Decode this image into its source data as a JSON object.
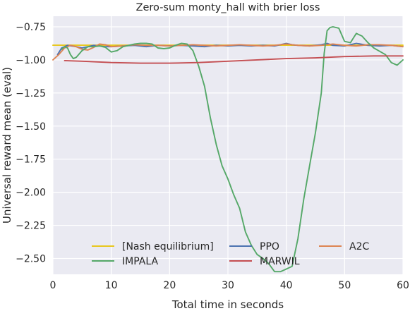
{
  "chart_data": {
    "type": "line",
    "title": "Zero-sum monty_hall with brier loss",
    "xlabel": "Total time in seconds",
    "ylabel": "Universal reward mean (eval)",
    "xlim": [
      0,
      60
    ],
    "ylim": [
      -2.62,
      -0.67
    ],
    "xticks": [
      0,
      10,
      20,
      30,
      40,
      50,
      60
    ],
    "xtick_labels": [
      "0",
      "10",
      "20",
      "30",
      "40",
      "50",
      "60"
    ],
    "yticks": [
      -0.75,
      -1.0,
      -1.25,
      -1.5,
      -1.75,
      -2.0,
      -2.25,
      -2.5
    ],
    "ytick_labels": [
      "−0.75",
      "−1.00",
      "−1.25",
      "−1.50",
      "−1.75",
      "−2.00",
      "−2.25",
      "−2.50"
    ],
    "grid": true,
    "legend_placement": "lower-center",
    "legend_columns": 3,
    "colors": {
      "background": "#eaeaf2",
      "grid": "#ffffff",
      "text": "#262626"
    },
    "series": [
      {
        "name": "[Nash equilibrium]",
        "color": "#e8c71d",
        "x": [
          0,
          60
        ],
        "y": [
          -0.889,
          -0.889
        ]
      },
      {
        "name": "PPO",
        "color": "#4c72b0",
        "x": [
          0.8,
          1.5,
          2.5,
          4,
          5,
          6,
          7,
          8,
          9,
          10,
          12,
          14,
          16,
          18,
          20,
          22,
          24,
          26,
          28,
          30,
          32,
          34,
          36,
          38,
          39,
          40,
          41,
          42,
          44,
          46,
          47,
          48,
          50,
          52,
          54,
          56,
          58,
          60
        ],
        "y": [
          -0.96,
          -0.91,
          -0.89,
          -0.9,
          -0.91,
          -0.9,
          -0.89,
          -0.895,
          -0.9,
          -0.9,
          -0.895,
          -0.89,
          -0.9,
          -0.89,
          -0.895,
          -0.89,
          -0.895,
          -0.9,
          -0.89,
          -0.895,
          -0.89,
          -0.895,
          -0.89,
          -0.895,
          -0.885,
          -0.875,
          -0.885,
          -0.89,
          -0.895,
          -0.885,
          -0.875,
          -0.89,
          -0.895,
          -0.875,
          -0.89,
          -0.895,
          -0.89,
          -0.9
        ]
      },
      {
        "name": "A2C",
        "color": "#dd8452",
        "x": [
          0,
          1,
          2,
          3,
          4,
          5,
          6,
          7,
          8,
          9,
          10,
          12,
          14,
          16,
          18,
          20,
          22,
          24,
          26,
          28,
          30,
          32,
          34,
          36,
          38,
          40,
          42,
          44,
          46,
          48,
          50,
          52,
          54,
          56,
          58,
          60
        ],
        "y": [
          -1.0,
          -0.96,
          -0.91,
          -0.89,
          -0.9,
          -0.92,
          -0.925,
          -0.905,
          -0.88,
          -0.885,
          -0.9,
          -0.895,
          -0.885,
          -0.89,
          -0.89,
          -0.895,
          -0.89,
          -0.885,
          -0.89,
          -0.895,
          -0.89,
          -0.885,
          -0.89,
          -0.895,
          -0.89,
          -0.88,
          -0.89,
          -0.895,
          -0.89,
          -0.88,
          -0.89,
          -0.895,
          -0.885,
          -0.885,
          -0.89,
          -0.9
        ]
      },
      {
        "name": "IMPALA",
        "color": "#55a868",
        "x": [
          1.5,
          2,
          2.5,
          3,
          3.5,
          4,
          5,
          6,
          7,
          8,
          9,
          10,
          11,
          12,
          13,
          14,
          15,
          16,
          17,
          18,
          19,
          20,
          21,
          22,
          23,
          24,
          25,
          26,
          27,
          28,
          29,
          30,
          31,
          32,
          33,
          34,
          35,
          36,
          37,
          38,
          39,
          40,
          41,
          42,
          43,
          44,
          45,
          46,
          46.5,
          47,
          47.5,
          48,
          49,
          50,
          51,
          52,
          53,
          54,
          55,
          56,
          57,
          58,
          59,
          60
        ],
        "y": [
          -0.92,
          -0.9,
          -0.91,
          -0.96,
          -0.99,
          -0.98,
          -0.93,
          -0.9,
          -0.9,
          -0.895,
          -0.905,
          -0.94,
          -0.93,
          -0.9,
          -0.89,
          -0.88,
          -0.875,
          -0.875,
          -0.88,
          -0.91,
          -0.915,
          -0.91,
          -0.89,
          -0.875,
          -0.88,
          -0.93,
          -1.05,
          -1.2,
          -1.44,
          -1.64,
          -1.8,
          -1.9,
          -2.02,
          -2.12,
          -2.3,
          -2.4,
          -2.47,
          -2.5,
          -2.54,
          -2.6,
          -2.6,
          -2.58,
          -2.56,
          -2.35,
          -2.05,
          -1.8,
          -1.55,
          -1.25,
          -0.95,
          -0.78,
          -0.755,
          -0.75,
          -0.76,
          -0.86,
          -0.87,
          -0.8,
          -0.82,
          -0.87,
          -0.91,
          -0.935,
          -0.96,
          -1.02,
          -1.04,
          -1.0
        ]
      },
      {
        "name": "MARWIL",
        "color": "#c44e52",
        "x": [
          2,
          5,
          10,
          15,
          20,
          25,
          30,
          35,
          40,
          45,
          50,
          55,
          60
        ],
        "y": [
          -1.005,
          -1.01,
          -1.02,
          -1.025,
          -1.025,
          -1.02,
          -1.01,
          -1.0,
          -0.99,
          -0.985,
          -0.975,
          -0.97,
          -0.97
        ]
      }
    ]
  }
}
